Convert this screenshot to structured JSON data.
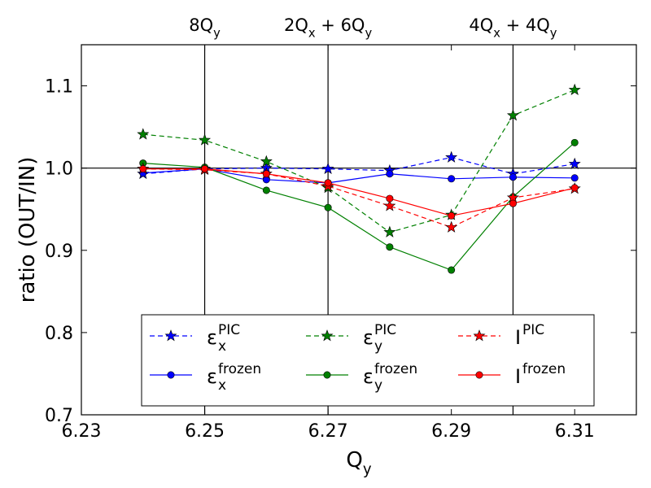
{
  "chart_data": {
    "type": "line",
    "xlabel": "Q",
    "xlabel_sub": "y",
    "ylabel": "ratio (OUT/IN)",
    "xlim": [
      6.23,
      6.32
    ],
    "ylim": [
      0.7,
      1.15
    ],
    "x_ticks": [
      6.23,
      6.25,
      6.27,
      6.29,
      6.31
    ],
    "x_tick_labels": [
      "6.23",
      "6.25",
      "6.27",
      "6.29",
      "6.31"
    ],
    "y_ticks": [
      0.7,
      0.8,
      0.9,
      1.0,
      1.1
    ],
    "y_tick_labels": [
      "0.7",
      "0.8",
      "0.9",
      "1.0",
      "1.1"
    ],
    "reference_line_y": 1.0,
    "resonance_lines": [
      {
        "x": 6.25,
        "label_parts": [
          [
            "8Q",
            ""
          ],
          [
            "y",
            "sub"
          ]
        ]
      },
      {
        "x": 6.27,
        "label_parts": [
          [
            "2Q",
            ""
          ],
          [
            "x",
            "sub"
          ],
          [
            " + 6Q",
            ""
          ],
          [
            "y",
            "sub"
          ]
        ]
      },
      {
        "x": 6.3,
        "label_parts": [
          [
            "4Q",
            ""
          ],
          [
            "x",
            "sub"
          ],
          [
            " + 4Q",
            ""
          ],
          [
            "y",
            "sub"
          ]
        ]
      }
    ],
    "legend_position": "lower-center",
    "x": [
      6.24,
      6.25,
      6.26,
      6.27,
      6.28,
      6.29,
      6.3,
      6.31
    ],
    "series": [
      {
        "id": "ex_pic",
        "name_base": "ε",
        "name_sub": "x",
        "name_sup": "PIC",
        "color": "#0000ff",
        "dashed": true,
        "marker": "star",
        "values": [
          0.993,
          0.999,
          1.0,
          0.999,
          0.997,
          1.013,
          0.993,
          1.005
        ]
      },
      {
        "id": "ex_frozen",
        "name_base": "ε",
        "name_sub": "x",
        "name_sup": "frozen",
        "color": "#0000ff",
        "dashed": false,
        "marker": "circle",
        "values": [
          0.994,
          0.999,
          0.986,
          0.982,
          0.993,
          0.987,
          0.989,
          0.988
        ]
      },
      {
        "id": "ey_pic",
        "name_base": "ε",
        "name_sub": "y",
        "name_sup": "PIC",
        "color": "#008000",
        "dashed": true,
        "marker": "star",
        "values": [
          1.041,
          1.034,
          1.008,
          0.976,
          0.922,
          0.943,
          1.064,
          1.095
        ]
      },
      {
        "id": "ey_frozen",
        "name_base": "ε",
        "name_sub": "y",
        "name_sup": "frozen",
        "color": "#008000",
        "dashed": false,
        "marker": "circle",
        "values": [
          1.006,
          1.001,
          0.973,
          0.952,
          0.904,
          0.876,
          0.965,
          1.031
        ]
      },
      {
        "id": "i_pic",
        "name_base": "I",
        "name_sub": "",
        "name_sup": "PIC",
        "color": "#ff0000",
        "dashed": true,
        "marker": "star",
        "values": [
          0.999,
          0.998,
          0.993,
          0.978,
          0.954,
          0.928,
          0.964,
          0.975
        ]
      },
      {
        "id": "i_frozen",
        "name_base": "I",
        "name_sub": "",
        "name_sup": "frozen",
        "color": "#ff0000",
        "dashed": false,
        "marker": "circle",
        "values": [
          0.999,
          0.999,
          0.993,
          0.982,
          0.963,
          0.942,
          0.957,
          0.976
        ]
      }
    ]
  }
}
